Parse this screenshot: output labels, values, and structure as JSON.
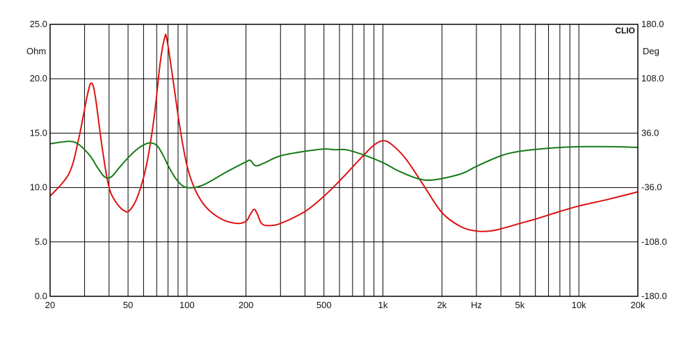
{
  "chart_data": {
    "type": "line",
    "brand": "CLIO",
    "x_scale": "log",
    "xlim": [
      20,
      20000
    ],
    "xticks": [
      {
        "value": 20,
        "label": "20"
      },
      {
        "value": 50,
        "label": "50"
      },
      {
        "value": 100,
        "label": "100"
      },
      {
        "value": 200,
        "label": "200"
      },
      {
        "value": 500,
        "label": "500"
      },
      {
        "value": 1000,
        "label": "1k"
      },
      {
        "value": 2000,
        "label": "2k"
      },
      {
        "value": 5000,
        "label": "5k"
      },
      {
        "value": 10000,
        "label": "10k"
      },
      {
        "value": 20000,
        "label": "20k"
      }
    ],
    "x_unit_label": "Hz",
    "x_unit_at": 3000,
    "left_axis": {
      "unit": "Ohm",
      "ylim": [
        0,
        25
      ],
      "ticks": [
        {
          "value": 0,
          "label": "0.0"
        },
        {
          "value": 5,
          "label": "5.0"
        },
        {
          "value": 10,
          "label": "10.0"
        },
        {
          "value": 15,
          "label": "15.0"
        },
        {
          "value": 20,
          "label": "20.0"
        },
        {
          "value": 25,
          "label": "25.0"
        }
      ]
    },
    "right_axis": {
      "unit": "Deg",
      "ylim": [
        -180,
        180
      ],
      "ticks": [
        {
          "value": -180,
          "label": "-180.0"
        },
        {
          "value": -108,
          "label": "-108.0"
        },
        {
          "value": -36,
          "label": "-36.0"
        },
        {
          "value": 36,
          "label": "36.0"
        },
        {
          "value": 108,
          "label": "108.0"
        },
        {
          "value": 180,
          "label": "180.0"
        }
      ]
    },
    "grid": true,
    "series": [
      {
        "axis": "left",
        "color": "#dd1111",
        "points": [
          [
            20,
            9.2
          ],
          [
            25,
            11.3
          ],
          [
            28,
            14.5
          ],
          [
            31,
            18.5
          ],
          [
            32.5,
            19.6
          ],
          [
            34,
            18.4
          ],
          [
            37,
            13.5
          ],
          [
            40,
            10.0
          ],
          [
            44,
            8.5
          ],
          [
            48,
            7.85
          ],
          [
            51,
            7.9
          ],
          [
            56,
            9.2
          ],
          [
            62,
            12.0
          ],
          [
            68,
            16.5
          ],
          [
            73,
            21.5
          ],
          [
            77,
            23.8
          ],
          [
            79,
            23.6
          ],
          [
            85,
            19.8
          ],
          [
            92,
            15.5
          ],
          [
            100,
            12.0
          ],
          [
            110,
            9.8
          ],
          [
            125,
            8.2
          ],
          [
            150,
            7.1
          ],
          [
            180,
            6.7
          ],
          [
            200,
            6.9
          ],
          [
            210,
            7.5
          ],
          [
            220,
            8.0
          ],
          [
            228,
            7.6
          ],
          [
            240,
            6.7
          ],
          [
            260,
            6.5
          ],
          [
            300,
            6.7
          ],
          [
            400,
            7.8
          ],
          [
            500,
            9.2
          ],
          [
            600,
            10.6
          ],
          [
            800,
            13.0
          ],
          [
            900,
            13.9
          ],
          [
            1000,
            14.3
          ],
          [
            1100,
            14.0
          ],
          [
            1300,
            12.7
          ],
          [
            1600,
            10.3
          ],
          [
            2000,
            7.7
          ],
          [
            2500,
            6.4
          ],
          [
            3000,
            6.0
          ],
          [
            3500,
            6.0
          ],
          [
            4000,
            6.2
          ],
          [
            5000,
            6.7
          ],
          [
            6000,
            7.1
          ],
          [
            8000,
            7.8
          ],
          [
            10000,
            8.3
          ],
          [
            14000,
            8.9
          ],
          [
            20000,
            9.6
          ]
        ]
      },
      {
        "axis": "right",
        "color": "#157a15",
        "points": [
          [
            20,
            22
          ],
          [
            25,
            25
          ],
          [
            28,
            21
          ],
          [
            32,
            6
          ],
          [
            35,
            -10
          ],
          [
            38,
            -22
          ],
          [
            41,
            -22
          ],
          [
            45,
            -10
          ],
          [
            52,
            8
          ],
          [
            58,
            18
          ],
          [
            64,
            23
          ],
          [
            70,
            20
          ],
          [
            75,
            8
          ],
          [
            82,
            -12
          ],
          [
            90,
            -28
          ],
          [
            100,
            -36
          ],
          [
            120,
            -33
          ],
          [
            160,
            -15
          ],
          [
            200,
            -2
          ],
          [
            210,
            0
          ],
          [
            220,
            -6
          ],
          [
            230,
            -7
          ],
          [
            250,
            -3
          ],
          [
            300,
            6
          ],
          [
            400,
            12
          ],
          [
            500,
            15
          ],
          [
            570,
            14
          ],
          [
            650,
            14
          ],
          [
            800,
            7
          ],
          [
            1000,
            -3
          ],
          [
            1200,
            -14
          ],
          [
            1500,
            -24
          ],
          [
            1800,
            -26
          ],
          [
            2500,
            -18
          ],
          [
            3000,
            -8
          ],
          [
            4000,
            6
          ],
          [
            5000,
            12
          ],
          [
            7000,
            16
          ],
          [
            10000,
            18
          ],
          [
            15000,
            18
          ],
          [
            20000,
            17
          ]
        ]
      }
    ]
  }
}
